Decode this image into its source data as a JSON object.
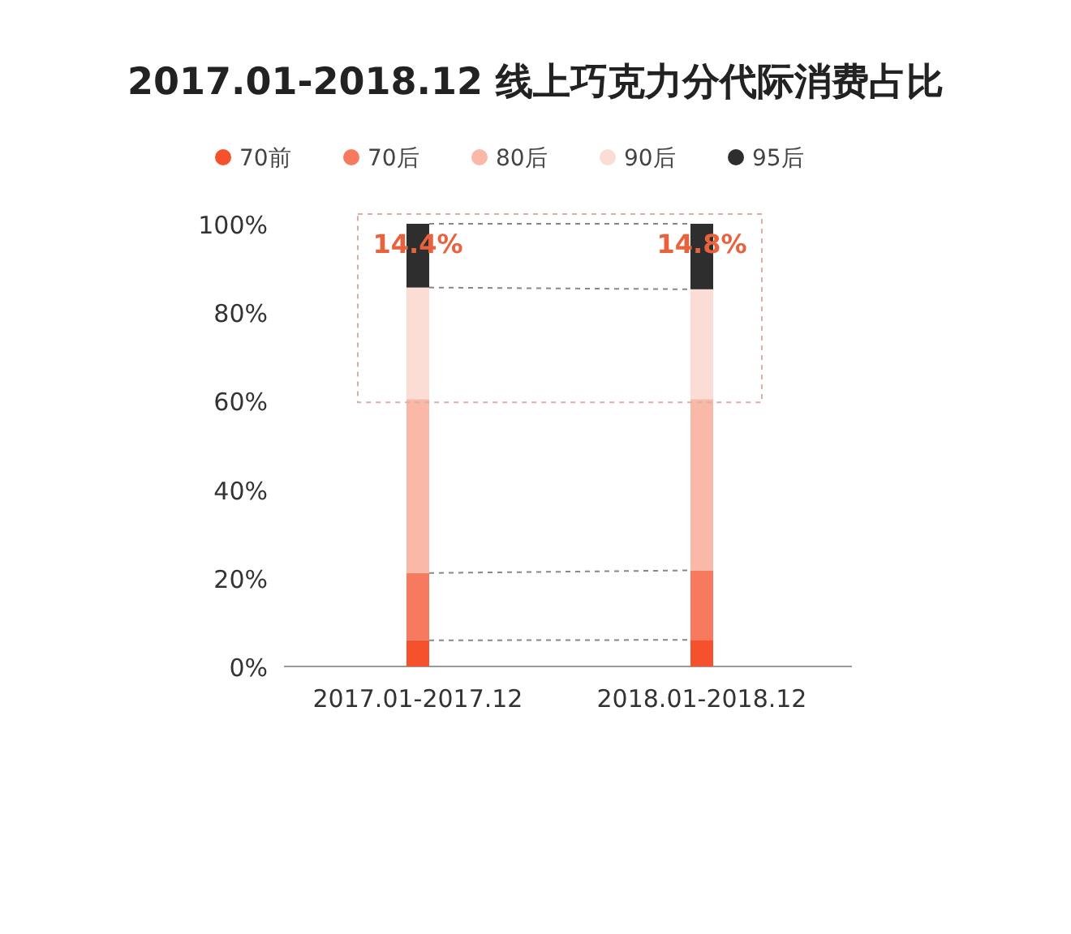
{
  "chart_data": {
    "type": "bar",
    "title": "2017.01-2018.12 线上巧克力分代际消费占比",
    "categories": [
      "2017.01-2017.12",
      "2018.01-2018.12"
    ],
    "stacked": true,
    "legend": "top",
    "ylim": [
      0,
      100
    ],
    "yticks": [
      {
        "value": 0,
        "label": "0%"
      },
      {
        "value": 20,
        "label": "20%"
      },
      {
        "value": 40,
        "label": "40%"
      },
      {
        "value": 60,
        "label": "60%"
      },
      {
        "value": 80,
        "label": "80%"
      },
      {
        "value": 100,
        "label": "100%"
      }
    ],
    "series": [
      {
        "name": "70前",
        "color": "#f4512c",
        "values": [
          5.9,
          6.0
        ]
      },
      {
        "name": "70后",
        "color": "#f77a5e",
        "values": [
          15.2,
          15.7
        ]
      },
      {
        "name": "80后",
        "color": "#f9b8a8",
        "values": [
          39.3,
          38.7
        ]
      },
      {
        "name": "90后",
        "color": "#fcddd6",
        "values": [
          25.2,
          24.8
        ]
      },
      {
        "name": "95后",
        "color": "#2e2e2e",
        "values": [
          14.4,
          14.8
        ],
        "value_labels": [
          "14.4%",
          "14.8%"
        ]
      }
    ]
  }
}
